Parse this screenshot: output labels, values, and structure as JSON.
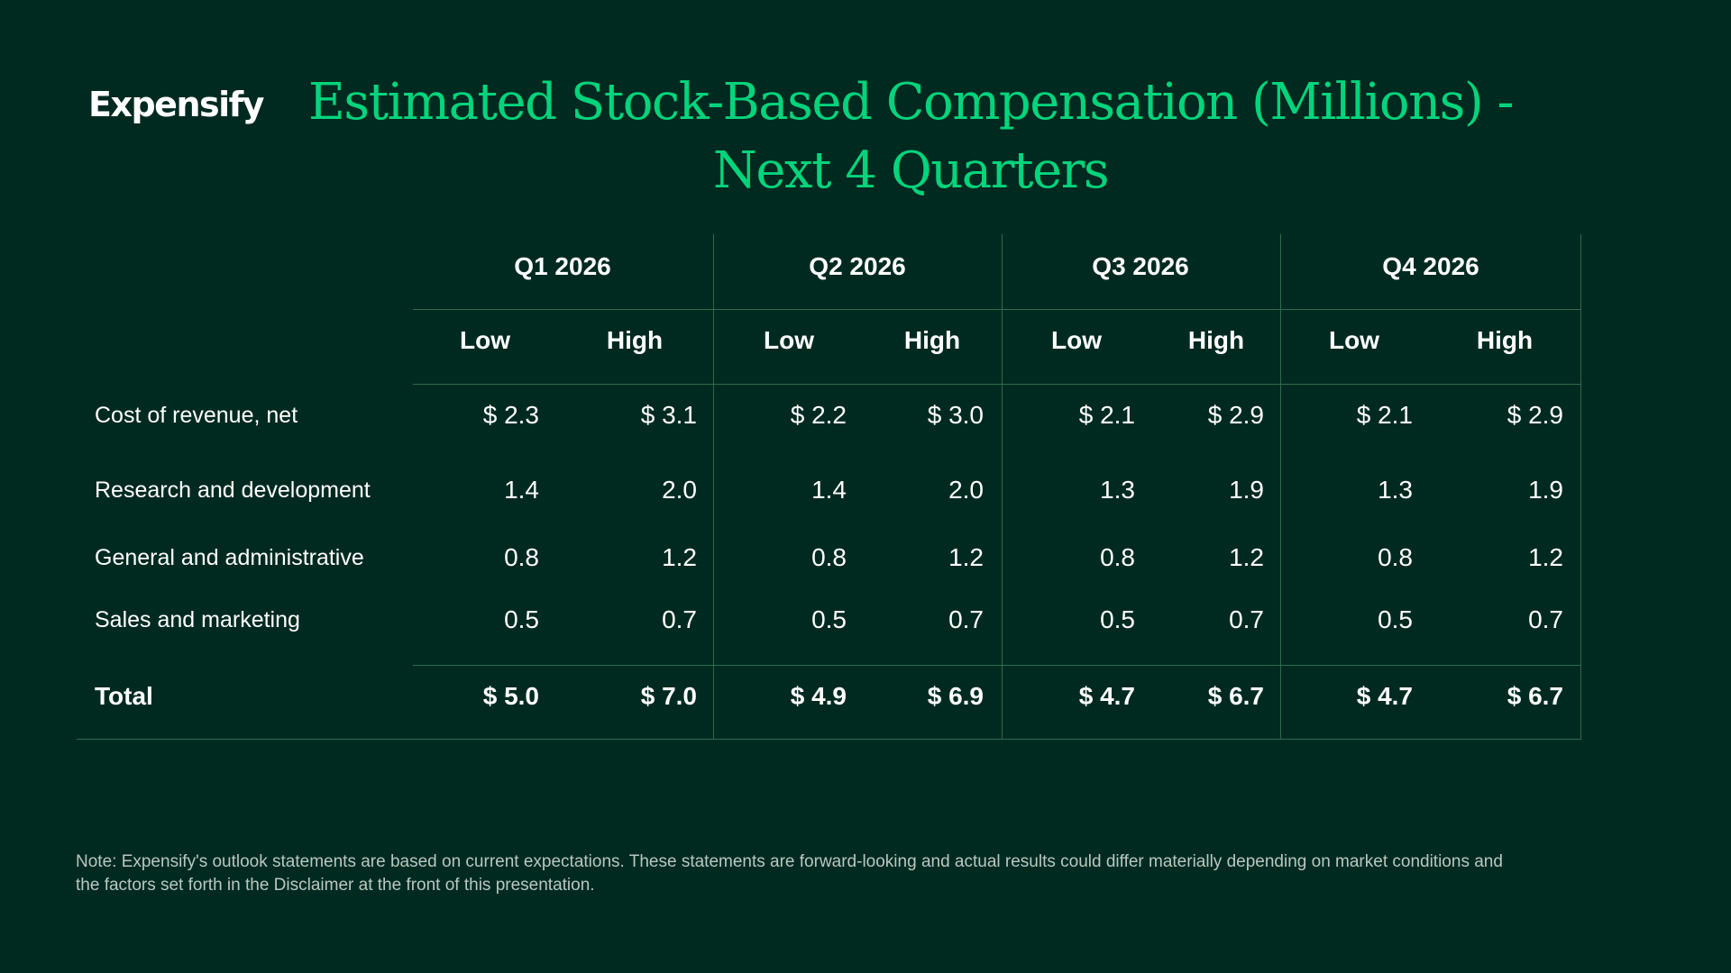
{
  "brand": {
    "logo_text": "Expensify"
  },
  "title": {
    "line1": "Estimated Stock-Based Compensation (Millions) -",
    "line2": "Next 4 Quarters"
  },
  "table": {
    "quarters": [
      "Q1 2026",
      "Q2 2026",
      "Q3 2026",
      "Q4 2026"
    ],
    "subheaders": [
      "Low",
      "High",
      "Low",
      "High",
      "Low",
      "High",
      "Low",
      "High"
    ],
    "rows": [
      {
        "label": "Cost of revenue, net",
        "values": [
          "$ 2.3",
          "$ 3.1",
          "$ 2.2",
          "$ 3.0",
          "$ 2.1",
          "$ 2.9",
          "$ 2.1",
          "$ 2.9"
        ]
      },
      {
        "label": "Research and development",
        "values": [
          "1.4",
          "2.0",
          "1.4",
          "2.0",
          "1.3",
          "1.9",
          "1.3",
          "1.9"
        ]
      },
      {
        "label": "General and administrative",
        "values": [
          "0.8",
          "1.2",
          "0.8",
          "1.2",
          "0.8",
          "1.2",
          "0.8",
          "1.2"
        ]
      },
      {
        "label": "Sales and marketing",
        "values": [
          "0.5",
          "0.7",
          "0.5",
          "0.7",
          "0.5",
          "0.7",
          "0.5",
          "0.7"
        ]
      },
      {
        "label": "Total",
        "values": [
          "$ 5.0",
          "$ 7.0",
          "$ 4.9",
          "$ 6.9",
          "$ 4.7",
          "$ 6.7",
          "$ 4.7",
          "$ 6.7"
        ]
      }
    ]
  },
  "note": "Note: Expensify's outlook statements are based on current expectations. These statements are forward-looking and actual results could differ materially depending on market conditions and the factors set forth in the Disclaimer at the front of this presentation.",
  "colors": {
    "background": "#002a20",
    "accent": "#03d47c",
    "rule": "#2e6b4f",
    "text": "#ffffff"
  }
}
